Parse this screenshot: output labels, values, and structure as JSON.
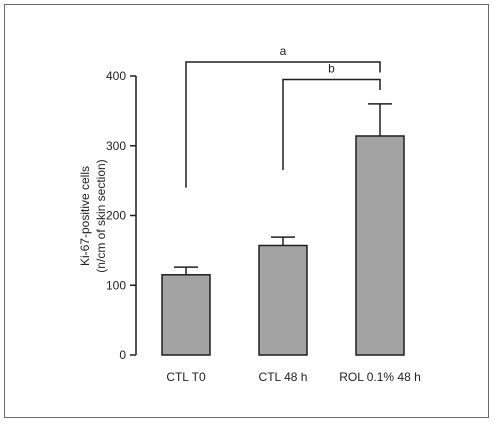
{
  "chart_data": {
    "type": "bar",
    "categories": [
      "CTL T0",
      "CTL 48 h",
      "ROL 0.1% 48 h"
    ],
    "values": [
      115,
      157,
      314
    ],
    "error_upper": [
      126,
      169,
      360
    ],
    "ylim": [
      0,
      400
    ],
    "yticks": [
      0,
      100,
      200,
      300,
      400
    ],
    "ylabel_line1": "Ki-67-positive cells",
    "ylabel_line2": "(n/cm of skin section)",
    "significance": [
      {
        "label": "a",
        "from_index": 0,
        "to_index": 2
      },
      {
        "label": "b",
        "from_index": 1,
        "to_index": 2
      }
    ],
    "grid": false,
    "colors": {
      "bar": "#a3a3a3",
      "line": "#1f1f1f",
      "frame": "#6b6b6b"
    }
  }
}
